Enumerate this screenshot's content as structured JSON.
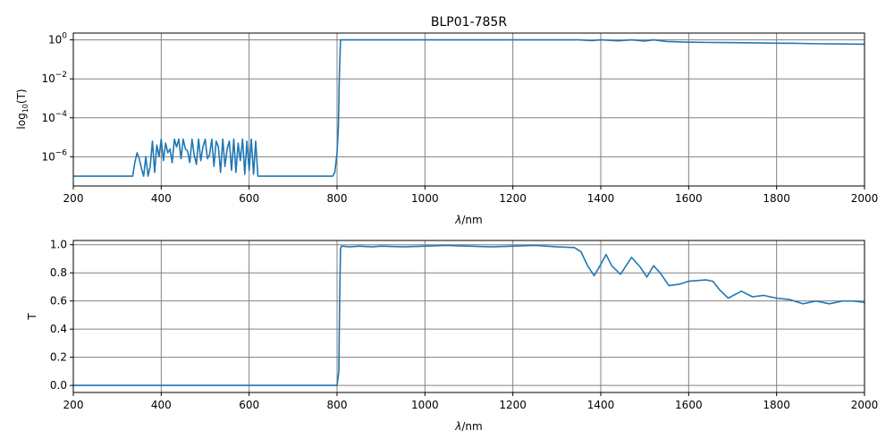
{
  "title": "BLP01-785R",
  "colors": {
    "series": "#1f77b4",
    "grid": "#808080",
    "axes": "#000000"
  },
  "chart_data": [
    {
      "type": "line",
      "title": "BLP01-785R",
      "xlabel": "λ/nm",
      "ylabel_prefix": "log",
      "ylabel_sub": "10",
      "ylabel_suffix": "(T)",
      "yscale": "log",
      "xlim": [
        200,
        2000
      ],
      "ylim_exp": [
        -7.5,
        0.35
      ],
      "grid": true,
      "x_ticks": [
        "200",
        "400",
        "600",
        "800",
        "1000",
        "1200",
        "1400",
        "1600",
        "1800",
        "2000"
      ],
      "y_ticks": [
        {
          "base": "10",
          "exp": "0",
          "value_exp": 0
        },
        {
          "base": "10",
          "exp": "−2",
          "value_exp": -2
        },
        {
          "base": "10",
          "exp": "−4",
          "value_exp": -4
        },
        {
          "base": "10",
          "exp": "−6",
          "value_exp": -6
        }
      ],
      "series": [
        {
          "x": [
            200,
            335,
            340,
            345,
            350,
            355,
            360,
            365,
            370,
            375,
            380,
            385,
            390,
            395,
            400,
            405,
            410,
            415,
            420,
            425,
            430,
            435,
            440,
            445,
            450,
            455,
            460,
            465,
            470,
            475,
            480,
            485,
            490,
            495,
            500,
            505,
            510,
            515,
            520,
            525,
            530,
            535,
            540,
            545,
            550,
            555,
            560,
            565,
            570,
            575,
            580,
            585,
            590,
            595,
            600,
            605,
            610,
            615,
            620,
            625,
            790,
            795,
            800,
            803,
            805,
            808,
            900,
            1000,
            1100,
            1200,
            1350,
            1380,
            1400,
            1420,
            1440,
            1470,
            1500,
            1520,
            1550,
            1600,
            1650,
            1700,
            1750,
            1800,
            1850,
            1900,
            1950,
            2000
          ],
          "y_exp": [
            -7,
            -7,
            -6.3,
            -5.8,
            -6.1,
            -6.6,
            -7,
            -6,
            -7,
            -6.5,
            -5.2,
            -6.8,
            -5.4,
            -6,
            -5.1,
            -6.2,
            -5.3,
            -5.8,
            -5.6,
            -6.3,
            -5.1,
            -5.5,
            -5.1,
            -6.1,
            -5.1,
            -5.6,
            -5.7,
            -6.3,
            -5.1,
            -5.9,
            -6.4,
            -5.1,
            -6.2,
            -5.5,
            -5.1,
            -6.1,
            -5.9,
            -5.1,
            -6.5,
            -5.2,
            -5.5,
            -6.8,
            -5.1,
            -6.5,
            -5.6,
            -5.2,
            -6.7,
            -5.1,
            -6.8,
            -5.3,
            -6.2,
            -5.1,
            -6.9,
            -5.2,
            -6.7,
            -5.1,
            -6.9,
            -5.2,
            -7,
            -7,
            -7,
            -6.8,
            -5.8,
            -4.5,
            -2,
            0,
            0,
            0,
            0,
            0,
            0,
            -0.04,
            0,
            -0.02,
            -0.05,
            0,
            -0.06,
            0,
            -0.08,
            -0.12,
            -0.13,
            -0.14,
            -0.15,
            -0.17,
            -0.18,
            -0.2,
            -0.21,
            -0.22
          ],
          "color": "#1f77b4"
        }
      ]
    },
    {
      "type": "line",
      "xlabel": "λ/nm",
      "ylabel": "T",
      "xlim": [
        200,
        2000
      ],
      "ylim": [
        -0.05,
        1.03
      ],
      "grid": true,
      "x_ticks": [
        "200",
        "400",
        "600",
        "800",
        "1000",
        "1200",
        "1400",
        "1600",
        "1800",
        "2000"
      ],
      "y_ticks": [
        "0.0",
        "0.2",
        "0.4",
        "0.6",
        "0.8",
        "1.0"
      ],
      "series": [
        {
          "x": [
            200,
            400,
            600,
            800,
            804,
            806,
            808,
            810,
            830,
            850,
            880,
            900,
            950,
            1000,
            1050,
            1100,
            1150,
            1200,
            1250,
            1300,
            1340,
            1355,
            1370,
            1385,
            1400,
            1412,
            1425,
            1445,
            1470,
            1490,
            1505,
            1520,
            1535,
            1555,
            1580,
            1600,
            1640,
            1655,
            1670,
            1690,
            1720,
            1745,
            1770,
            1800,
            1830,
            1860,
            1890,
            1920,
            1950,
            1975,
            2000
          ],
          "y": [
            0,
            0,
            0,
            0,
            0.1,
            0.6,
            0.97,
            0.99,
            0.985,
            0.99,
            0.985,
            0.99,
            0.985,
            0.99,
            0.995,
            0.99,
            0.985,
            0.99,
            0.995,
            0.985,
            0.98,
            0.95,
            0.85,
            0.78,
            0.86,
            0.93,
            0.85,
            0.79,
            0.91,
            0.84,
            0.77,
            0.85,
            0.8,
            0.71,
            0.72,
            0.74,
            0.75,
            0.74,
            0.68,
            0.62,
            0.67,
            0.63,
            0.64,
            0.62,
            0.61,
            0.58,
            0.6,
            0.58,
            0.6,
            0.6,
            0.59
          ],
          "color": "#1f77b4"
        }
      ]
    }
  ]
}
